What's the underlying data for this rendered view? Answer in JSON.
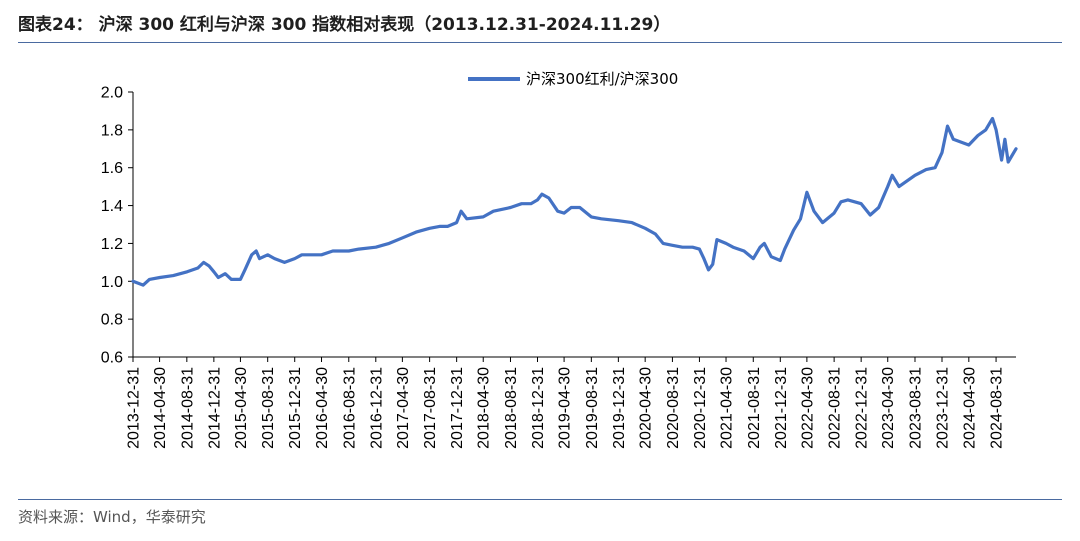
{
  "title": "图表24：  沪深 300 红利与沪深 300 指数相对表现（2013.12.31-2024.11.29）",
  "source": "资料来源：Wind，华泰研究",
  "colors": {
    "series": "#4472c4",
    "rule": "#4a6aa0"
  },
  "chart_data": {
    "type": "line",
    "ylim": [
      0.6,
      2.0
    ],
    "ytick_labels": [
      "0.6",
      "0.8",
      "1.0",
      "1.2",
      "1.4",
      "1.6",
      "1.8",
      "2.0"
    ],
    "x_range": [
      "2013-12-31",
      "2024-11-29"
    ],
    "xtick_labels": [
      "2013-12-31",
      "2014-04-30",
      "2014-08-31",
      "2014-12-31",
      "2015-04-30",
      "2015-08-31",
      "2015-12-31",
      "2016-04-30",
      "2016-08-31",
      "2016-12-31",
      "2017-04-30",
      "2017-08-31",
      "2017-12-31",
      "2018-04-30",
      "2018-08-31",
      "2018-12-31",
      "2019-04-30",
      "2019-08-31",
      "2019-12-31",
      "2020-04-30",
      "2020-08-31",
      "2020-12-31",
      "2021-04-30",
      "2021-08-31",
      "2021-12-31",
      "2022-04-30",
      "2022-08-31",
      "2022-12-31",
      "2023-04-30",
      "2023-08-31",
      "2023-12-31",
      "2024-04-30",
      "2024-08-31"
    ],
    "legend_position": "top",
    "series": [
      {
        "name": "沪深300红利/沪深300",
        "points": [
          [
            "2013-12-31",
            1.0
          ],
          [
            "2014-02-15",
            0.98
          ],
          [
            "2014-03-15",
            1.01
          ],
          [
            "2014-05-01",
            1.02
          ],
          [
            "2014-07-01",
            1.03
          ],
          [
            "2014-09-01",
            1.05
          ],
          [
            "2014-10-20",
            1.07
          ],
          [
            "2014-11-15",
            1.1
          ],
          [
            "2014-12-10",
            1.08
          ],
          [
            "2014-12-31",
            1.05
          ],
          [
            "2015-01-20",
            1.02
          ],
          [
            "2015-02-20",
            1.04
          ],
          [
            "2015-03-20",
            1.01
          ],
          [
            "2015-04-30",
            1.01
          ],
          [
            "2015-05-20",
            1.06
          ],
          [
            "2015-06-20",
            1.14
          ],
          [
            "2015-07-10",
            1.16
          ],
          [
            "2015-07-25",
            1.12
          ],
          [
            "2015-08-31",
            1.14
          ],
          [
            "2015-10-01",
            1.12
          ],
          [
            "2015-11-15",
            1.1
          ],
          [
            "2015-12-31",
            1.12
          ],
          [
            "2016-02-01",
            1.14
          ],
          [
            "2016-04-30",
            1.14
          ],
          [
            "2016-06-20",
            1.16
          ],
          [
            "2016-08-31",
            1.16
          ],
          [
            "2016-10-15",
            1.17
          ],
          [
            "2016-12-31",
            1.18
          ],
          [
            "2017-03-01",
            1.2
          ],
          [
            "2017-05-01",
            1.23
          ],
          [
            "2017-07-01",
            1.26
          ],
          [
            "2017-08-31",
            1.28
          ],
          [
            "2017-10-15",
            1.29
          ],
          [
            "2017-11-20",
            1.29
          ],
          [
            "2017-12-31",
            1.31
          ],
          [
            "2018-01-20",
            1.37
          ],
          [
            "2018-02-15",
            1.33
          ],
          [
            "2018-04-30",
            1.34
          ],
          [
            "2018-06-15",
            1.37
          ],
          [
            "2018-08-31",
            1.39
          ],
          [
            "2018-10-20",
            1.41
          ],
          [
            "2018-12-01",
            1.41
          ],
          [
            "2018-12-31",
            1.43
          ],
          [
            "2019-01-20",
            1.46
          ],
          [
            "2019-02-20",
            1.44
          ],
          [
            "2019-04-01",
            1.37
          ],
          [
            "2019-04-30",
            1.36
          ],
          [
            "2019-06-01",
            1.39
          ],
          [
            "2019-07-10",
            1.39
          ],
          [
            "2019-08-31",
            1.34
          ],
          [
            "2019-10-15",
            1.33
          ],
          [
            "2019-12-31",
            1.32
          ],
          [
            "2020-03-01",
            1.31
          ],
          [
            "2020-04-30",
            1.28
          ],
          [
            "2020-06-15",
            1.25
          ],
          [
            "2020-07-20",
            1.2
          ],
          [
            "2020-08-31",
            1.19
          ],
          [
            "2020-10-15",
            1.18
          ],
          [
            "2020-11-30",
            1.18
          ],
          [
            "2020-12-31",
            1.17
          ],
          [
            "2021-01-20",
            1.12
          ],
          [
            "2021-02-10",
            1.06
          ],
          [
            "2021-03-01",
            1.09
          ],
          [
            "2021-03-20",
            1.22
          ],
          [
            "2021-04-30",
            1.2
          ],
          [
            "2021-06-01",
            1.18
          ],
          [
            "2021-07-20",
            1.16
          ],
          [
            "2021-08-31",
            1.12
          ],
          [
            "2021-10-01",
            1.18
          ],
          [
            "2021-10-20",
            1.2
          ],
          [
            "2021-11-20",
            1.13
          ],
          [
            "2021-12-31",
            1.11
          ],
          [
            "2022-01-20",
            1.17
          ],
          [
            "2022-03-01",
            1.27
          ],
          [
            "2022-04-01",
            1.33
          ],
          [
            "2022-04-30",
            1.47
          ],
          [
            "2022-06-01",
            1.37
          ],
          [
            "2022-07-10",
            1.31
          ],
          [
            "2022-08-31",
            1.36
          ],
          [
            "2022-10-01",
            1.42
          ],
          [
            "2022-11-01",
            1.43
          ],
          [
            "2022-12-31",
            1.41
          ],
          [
            "2023-02-10",
            1.35
          ],
          [
            "2023-03-20",
            1.39
          ],
          [
            "2023-04-30",
            1.5
          ],
          [
            "2023-05-20",
            1.56
          ],
          [
            "2023-06-20",
            1.5
          ],
          [
            "2023-08-31",
            1.56
          ],
          [
            "2023-10-20",
            1.59
          ],
          [
            "2023-11-30",
            1.6
          ],
          [
            "2023-12-31",
            1.68
          ],
          [
            "2024-01-25",
            1.82
          ],
          [
            "2024-02-20",
            1.75
          ],
          [
            "2024-04-30",
            1.72
          ],
          [
            "2024-06-10",
            1.77
          ],
          [
            "2024-07-15",
            1.8
          ],
          [
            "2024-08-15",
            1.86
          ],
          [
            "2024-08-31",
            1.8
          ],
          [
            "2024-09-25",
            1.64
          ],
          [
            "2024-10-10",
            1.75
          ],
          [
            "2024-10-25",
            1.63
          ],
          [
            "2024-11-29",
            1.7
          ]
        ]
      }
    ]
  }
}
